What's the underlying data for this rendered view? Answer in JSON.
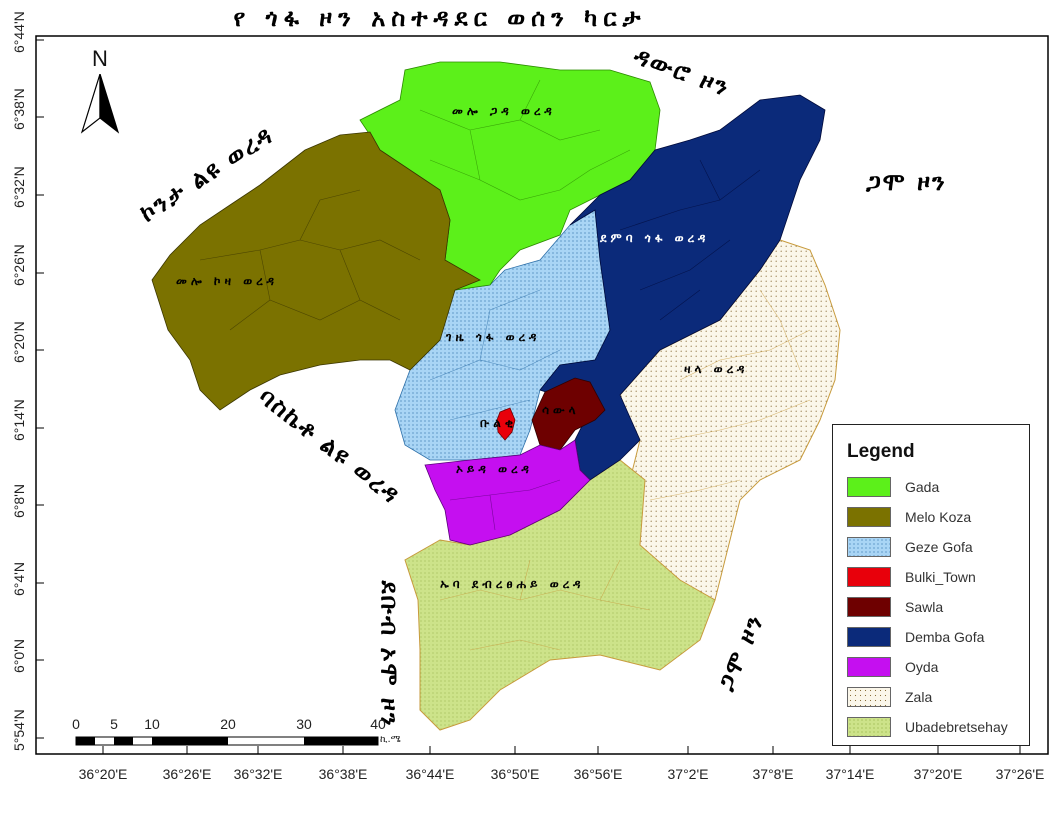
{
  "title": "የ ጎፋ ዞን አስተዳደር ወሰን ካርታ",
  "lat_labels": [
    "6°44'N",
    "6°38'N",
    "6°32'N",
    "6°26'N",
    "6°20'N",
    "6°14'N",
    "6°8'N",
    "6°4'N",
    "6°0'N",
    "5°54'N"
  ],
  "lon_labels": [
    "36°20'E",
    "36°26'E",
    "36°32'E",
    "36°38'E",
    "36°44'E",
    "36°50'E",
    "36°56'E",
    "37°2'E",
    "37°8'E",
    "37°14'E",
    "37°20'E",
    "37°26'E"
  ],
  "north_label": "N",
  "legend": {
    "title": "Legend",
    "items": [
      {
        "label": "Gada",
        "color": "#5cf01a"
      },
      {
        "label": "Melo Koza",
        "color": "#7b7200"
      },
      {
        "label": "Geze Gofa",
        "color": "#a9d5f5"
      },
      {
        "label": "Bulki_Town",
        "color": "#e8000b"
      },
      {
        "label": "Sawla",
        "color": "#6e0000"
      },
      {
        "label": "Demba Gofa",
        "color": "#0b2a7a"
      },
      {
        "label": "Oyda",
        "color": "#c50ff0"
      },
      {
        "label": "Zala",
        "color": "#fbf7ea"
      },
      {
        "label": "Ubadebretsehay",
        "color": "#cde38a"
      }
    ]
  },
  "scale_bar": {
    "ticks": [
      "0",
      "5",
      "10",
      "20",
      "30",
      "40"
    ],
    "unit": "ኪ.ሜ"
  },
  "woreda_labels": {
    "gada": "መሎ ጋዳ ወረዳ",
    "melo_koza": "መሎ ኮዛ ወረዳ",
    "demba_gofa": "ደምባ ጎፋ ወረዳ",
    "geze_gofa": "ገዜ ጎፋ ወረዳ",
    "zala": "ዛላ ወረዳ",
    "bulki": "ቡልቂ",
    "sawla": "ሳውላ",
    "oyda": "ኦይዳ ወረዳ",
    "uba": "ኡባ ደብረፀሐይ ወረዳ"
  },
  "zone_labels": {
    "konta": "ኮንታ ልዩ ወረዳ",
    "dawro": "ዳውሮ ዞን",
    "gamo_ne": "ጋሞ ዞን",
    "basketo": "ባስኬቶ ልዩ ወረዳ",
    "south_omo": "ደቡብ ኦሞ ዞን",
    "gamo_se": "ጋሞ ዞን"
  }
}
